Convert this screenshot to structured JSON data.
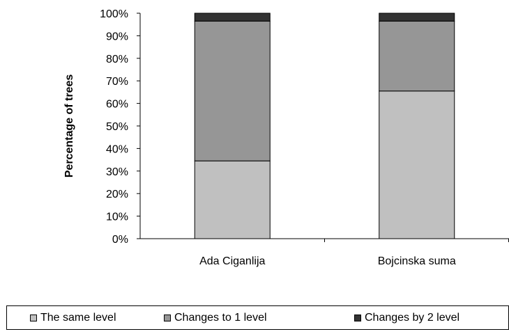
{
  "chart_data": {
    "type": "bar",
    "stacked": true,
    "categories": [
      "Ada Ciganlija",
      "Bojcinska suma"
    ],
    "series": [
      {
        "name": "The same level",
        "values": [
          34.5,
          65.5
        ],
        "color": "#c0c0c0"
      },
      {
        "name": "Changes to 1 level",
        "values": [
          62.0,
          31.0
        ],
        "color": "#969696"
      },
      {
        "name": "Changes by 2 level",
        "values": [
          3.5,
          3.5
        ],
        "color": "#333333"
      }
    ],
    "ylabel": "Percentage of trees",
    "xlabel": "",
    "ylim": [
      0,
      100
    ],
    "yticks": [
      "0%",
      "10%",
      "20%",
      "30%",
      "40%",
      "50%",
      "60%",
      "70%",
      "80%",
      "90%",
      "100%"
    ],
    "grid": false,
    "legend_position": "bottom"
  }
}
